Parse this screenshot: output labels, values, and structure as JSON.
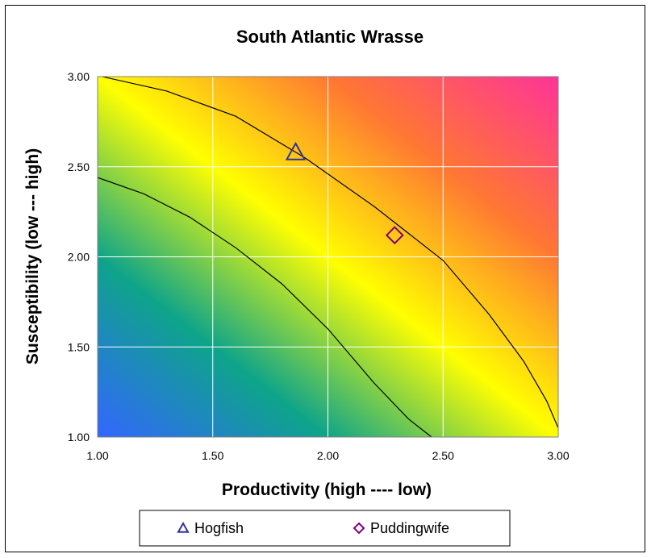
{
  "chart_data": {
    "type": "scatter",
    "title": "South Atlantic Wrasse",
    "xlabel": "Productivity (high ---- low)",
    "ylabel": "Susceptibility (low --- high)",
    "xlim": [
      1.0,
      3.0
    ],
    "ylim": [
      1.0,
      3.0
    ],
    "x_ticks": [
      "1.00",
      "1.50",
      "2.00",
      "2.50",
      "3.00"
    ],
    "y_ticks": [
      "1.00",
      "1.50",
      "2.00",
      "2.50",
      "3.00"
    ],
    "grid": true,
    "background": "diagonal gradient from blue (low productivity score, low susceptibility) through green and yellow to red/magenta (high)",
    "gradient_colors": [
      "#3366ff",
      "#0ea48a",
      "#ffff00",
      "#ff7733",
      "#ff3399"
    ],
    "contour_lines": [
      {
        "x": [
          1.0,
          1.2,
          1.4,
          1.6,
          1.8,
          2.0,
          2.2,
          2.35,
          2.45
        ],
        "y": [
          2.44,
          2.35,
          2.22,
          2.05,
          1.85,
          1.6,
          1.3,
          1.1,
          1.0
        ]
      },
      {
        "x": [
          1.02,
          1.3,
          1.6,
          1.9,
          2.2,
          2.5,
          2.7,
          2.85,
          2.95,
          3.0
        ],
        "y": [
          3.0,
          2.92,
          2.78,
          2.55,
          2.28,
          1.98,
          1.68,
          1.42,
          1.2,
          1.05
        ]
      }
    ],
    "series": [
      {
        "name": "Hogfish",
        "marker": "triangle",
        "color": "#333399",
        "x": [
          1.86
        ],
        "y": [
          2.58
        ]
      },
      {
        "name": "Puddingwife",
        "marker": "diamond",
        "color": "#800080",
        "x": [
          2.29
        ],
        "y": [
          2.12
        ]
      }
    ],
    "legend_position": "bottom"
  }
}
